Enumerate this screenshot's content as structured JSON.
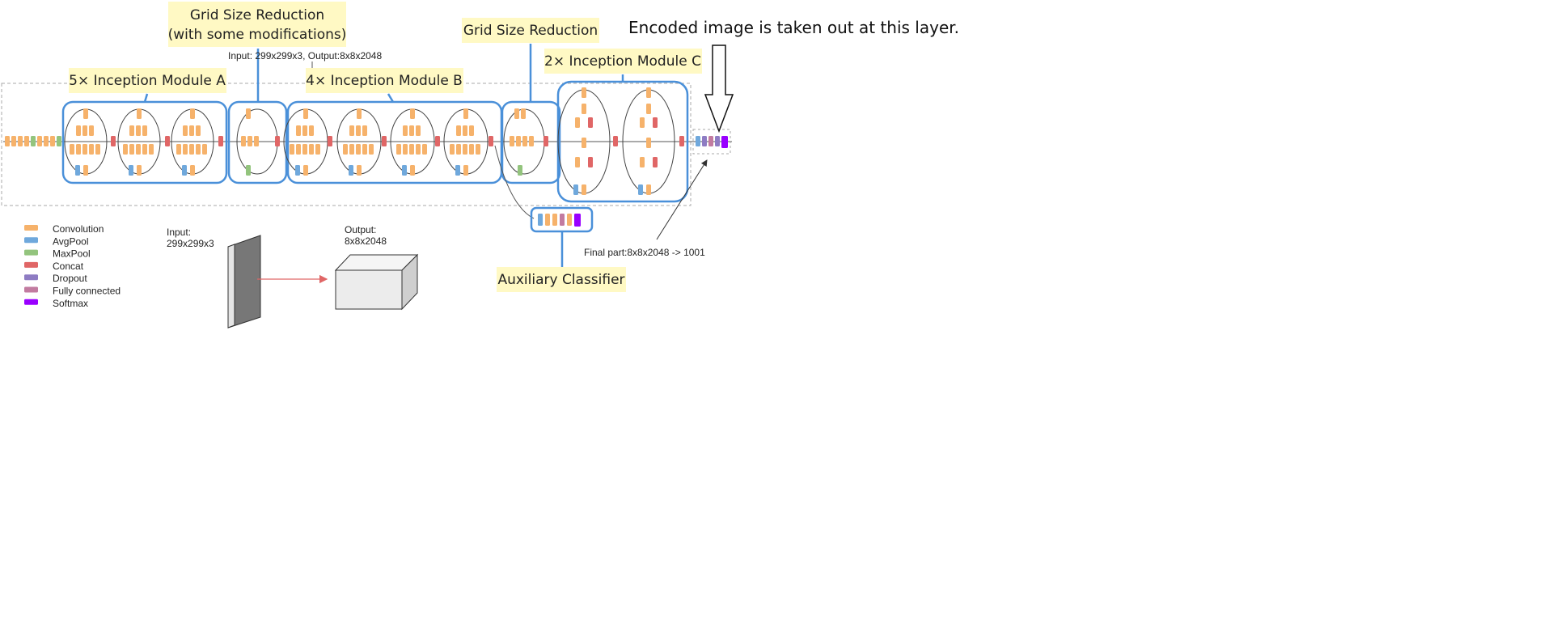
{
  "labels": {
    "grid_reduction_mod_line1": "Grid Size Reduction",
    "grid_reduction_mod_line2": "(with some modifications)",
    "grid_reduction": "Grid Size Reduction",
    "module_a": "5× Inception Module A",
    "module_b": "4× Inception Module B",
    "module_c": "2× Inception Module C",
    "aux_classifier": "Auxiliary Classifier",
    "encoded_note": "Encoded image is taken out at this layer.",
    "io_summary": "Input: 299x299x3, Output:8x8x2048",
    "final_part": "Final part:8x8x2048 -> 1001",
    "input_label_1": "Input:",
    "input_label_2": "299x299x3",
    "output_label_1": "Output:",
    "output_label_2": "8x8x2048"
  },
  "legend": [
    {
      "label": "Convolution",
      "color": "#f6b26b"
    },
    {
      "label": "AvgPool",
      "color": "#6fa8dc"
    },
    {
      "label": "MaxPool",
      "color": "#93c47d"
    },
    {
      "label": "Concat",
      "color": "#e06666"
    },
    {
      "label": "Dropout",
      "color": "#8e7cc3"
    },
    {
      "label": "Fully connected",
      "color": "#c27ba0"
    },
    {
      "label": "Softmax",
      "color": "#9900ff"
    }
  ],
  "colors": {
    "conv": "#f6b26b",
    "avgpool": "#6fa8dc",
    "maxpool": "#93c47d",
    "concat": "#e06666",
    "dropout": "#8e7cc3",
    "fc": "#c27ba0",
    "softmax": "#9900ff",
    "module_border": "#4a90d9",
    "callout_bg": "#fff9c4"
  }
}
